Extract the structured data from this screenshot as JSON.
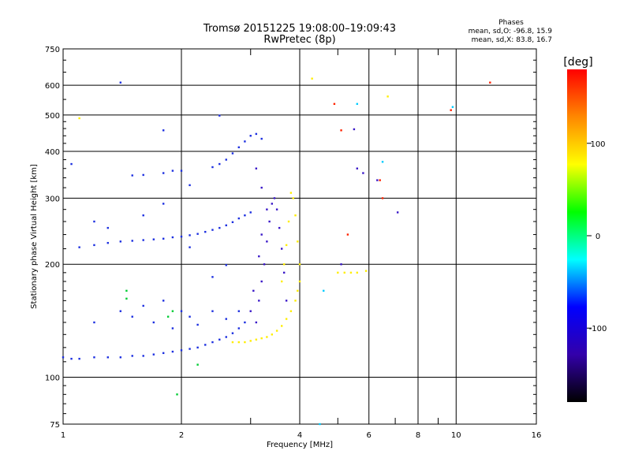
{
  "chart_data": {
    "type": "scatter",
    "title": "Tromsø 20151225 19:08:00–19:09:43",
    "subtitle": "RwPretec (8p)",
    "xlabel": "Frequency [MHz]",
    "ylabel": "Stationary phase Virtual Height [km]",
    "x_scale": "log",
    "y_scale": "log",
    "xlim": [
      1,
      16
    ],
    "ylim": [
      75,
      750
    ],
    "x_ticks": [
      1,
      2,
      4,
      6,
      8,
      10,
      16
    ],
    "x_minor_ticks": [
      3,
      5,
      7,
      9
    ],
    "y_ticks": [
      75,
      100,
      200,
      300,
      400,
      500,
      600,
      750
    ],
    "grid": true,
    "stats": {
      "heading": "Phases",
      "line_o": "mean, sd,O: -96.8, 15.9",
      "line_x": "mean, sd,X: 83.8, 16.7"
    },
    "colorbar": {
      "label": "[deg]",
      "range": [
        -180,
        180
      ],
      "ticks": [
        100,
        0,
        -100
      ],
      "tick_labels": [
        "100",
        "0",
        "-100"
      ],
      "colors": [
        "#ff0000",
        "#ff8800",
        "#ffff00",
        "#00ff00",
        "#00ffff",
        "#0000ff",
        "#3300aa",
        "#000000"
      ]
    },
    "series": [
      {
        "phase": -96.8,
        "color": "#1c2fe0",
        "points": [
          [
            1.0,
            113
          ],
          [
            1.05,
            112
          ],
          [
            1.1,
            112
          ],
          [
            1.2,
            113
          ],
          [
            1.3,
            113
          ],
          [
            1.4,
            113
          ],
          [
            1.5,
            114
          ],
          [
            1.6,
            114
          ],
          [
            1.7,
            115
          ],
          [
            1.8,
            116
          ],
          [
            1.9,
            117
          ],
          [
            2.0,
            118
          ],
          [
            2.1,
            119
          ],
          [
            2.2,
            120
          ],
          [
            2.3,
            122
          ],
          [
            2.4,
            124
          ],
          [
            2.5,
            126
          ],
          [
            2.6,
            128
          ],
          [
            2.7,
            131
          ],
          [
            2.8,
            135
          ],
          [
            2.9,
            140
          ],
          [
            1.1,
            222
          ],
          [
            1.2,
            225
          ],
          [
            1.3,
            228
          ],
          [
            1.4,
            230
          ],
          [
            1.5,
            231
          ],
          [
            1.6,
            232
          ],
          [
            1.7,
            233
          ],
          [
            1.8,
            234
          ],
          [
            1.9,
            236
          ],
          [
            2.0,
            237
          ],
          [
            2.1,
            239
          ],
          [
            2.2,
            241
          ],
          [
            2.3,
            244
          ],
          [
            2.4,
            247
          ],
          [
            2.5,
            250
          ],
          [
            2.6,
            254
          ],
          [
            2.7,
            259
          ],
          [
            2.8,
            265
          ],
          [
            2.9,
            270
          ],
          [
            3.0,
            275
          ],
          [
            1.5,
            345
          ],
          [
            1.6,
            346
          ],
          [
            1.8,
            350
          ],
          [
            1.9,
            355
          ],
          [
            2.0,
            355
          ],
          [
            2.4,
            363
          ],
          [
            2.5,
            370
          ],
          [
            2.6,
            380
          ],
          [
            2.7,
            395
          ],
          [
            2.8,
            410
          ],
          [
            2.9,
            425
          ],
          [
            3.0,
            440
          ],
          [
            3.1,
            445
          ],
          [
            3.2,
            432
          ],
          [
            1.2,
            140
          ],
          [
            1.4,
            150
          ],
          [
            1.5,
            145
          ],
          [
            1.6,
            155
          ],
          [
            1.7,
            140
          ],
          [
            1.8,
            160
          ],
          [
            1.9,
            135
          ],
          [
            2.0,
            150
          ],
          [
            2.1,
            145
          ],
          [
            2.2,
            138
          ],
          [
            2.4,
            150
          ],
          [
            2.6,
            143
          ],
          [
            2.8,
            150
          ],
          [
            1.2,
            260
          ],
          [
            1.3,
            250
          ],
          [
            1.6,
            270
          ],
          [
            1.8,
            290
          ],
          [
            2.1,
            222
          ],
          [
            2.4,
            185
          ],
          [
            2.6,
            199
          ],
          [
            1.4,
            610
          ],
          [
            1.8,
            455
          ],
          [
            2.1,
            325
          ],
          [
            2.5,
            498
          ],
          [
            1.05,
            370
          ]
        ]
      },
      {
        "phase": -140,
        "color": "#3a18c8",
        "points": [
          [
            3.1,
            140
          ],
          [
            3.15,
            160
          ],
          [
            3.2,
            180
          ],
          [
            3.25,
            200
          ],
          [
            3.3,
            230
          ],
          [
            3.35,
            260
          ],
          [
            3.4,
            290
          ],
          [
            3.45,
            300
          ],
          [
            3.5,
            280
          ],
          [
            3.55,
            250
          ],
          [
            3.6,
            220
          ],
          [
            3.65,
            190
          ],
          [
            3.7,
            160
          ],
          [
            3.0,
            150
          ],
          [
            3.05,
            170
          ],
          [
            3.15,
            210
          ],
          [
            3.2,
            240
          ],
          [
            3.3,
            280
          ],
          [
            3.2,
            320
          ],
          [
            3.1,
            360
          ],
          [
            5.5,
            458
          ],
          [
            5.8,
            350
          ],
          [
            6.3,
            335
          ],
          [
            7.1,
            275
          ],
          [
            5.1,
            200
          ],
          [
            5.6,
            360
          ]
        ]
      },
      {
        "phase": 83.8,
        "color": "#ffee00",
        "points": [
          [
            2.7,
            124
          ],
          [
            2.8,
            124
          ],
          [
            2.9,
            124
          ],
          [
            3.0,
            125
          ],
          [
            3.1,
            126
          ],
          [
            3.2,
            127
          ],
          [
            3.3,
            128
          ],
          [
            3.4,
            130
          ],
          [
            3.5,
            133
          ],
          [
            3.6,
            137
          ],
          [
            3.7,
            143
          ],
          [
            3.8,
            150
          ],
          [
            3.9,
            160
          ],
          [
            3.95,
            170
          ],
          [
            4.0,
            180
          ],
          [
            4.0,
            200
          ],
          [
            3.95,
            230
          ],
          [
            3.9,
            270
          ],
          [
            3.85,
            300
          ],
          [
            3.8,
            310
          ],
          [
            3.6,
            180
          ],
          [
            3.65,
            200
          ],
          [
            3.7,
            225
          ],
          [
            3.75,
            260
          ],
          [
            5.0,
            190
          ],
          [
            5.2,
            190
          ],
          [
            5.4,
            190
          ],
          [
            5.6,
            190
          ],
          [
            5.9,
            192
          ],
          [
            4.3,
            625
          ],
          [
            6.7,
            560
          ],
          [
            1.1,
            490
          ]
        ]
      },
      {
        "phase": 10,
        "color": "#00cc33",
        "points": [
          [
            1.45,
            170
          ],
          [
            1.45,
            162
          ],
          [
            1.85,
            145
          ],
          [
            1.9,
            150
          ],
          [
            1.95,
            90
          ],
          [
            2.2,
            108
          ]
        ]
      },
      {
        "phase": 150,
        "color": "#ff2200",
        "points": [
          [
            6.4,
            335
          ],
          [
            6.5,
            300
          ],
          [
            5.3,
            240
          ],
          [
            9.7,
            515
          ],
          [
            12.2,
            610
          ],
          [
            5.1,
            455
          ],
          [
            4.9,
            535
          ]
        ]
      },
      {
        "phase": -50,
        "color": "#00ccff",
        "points": [
          [
            6.5,
            375
          ],
          [
            9.8,
            525
          ],
          [
            4.6,
            170
          ],
          [
            4.5,
            75
          ],
          [
            5.6,
            535
          ]
        ]
      }
    ]
  }
}
